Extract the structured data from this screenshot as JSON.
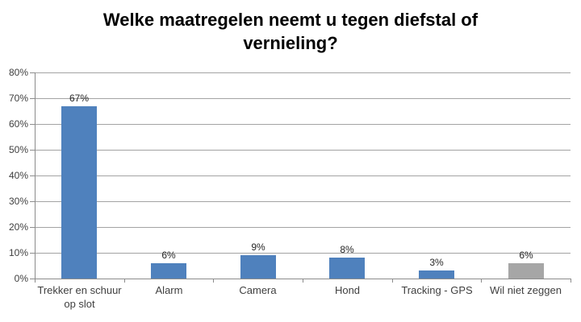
{
  "chart_data": {
    "type": "bar",
    "title": "Welke maatregelen neemt u tegen diefstal of vernieling?",
    "categories": [
      "Trekker en schuur op slot",
      "Alarm",
      "Camera",
      "Hond",
      "Tracking - GPS",
      "Wil niet zeggen"
    ],
    "values": [
      67,
      6,
      9,
      8,
      3,
      6
    ],
    "value_labels": [
      "67%",
      "6%",
      "9%",
      "8%",
      "3%",
      "6%"
    ],
    "bar_colors": [
      "#4F81BD",
      "#4F81BD",
      "#4F81BD",
      "#4F81BD",
      "#4F81BD",
      "#A6A6A6"
    ],
    "ylim": [
      0,
      80
    ],
    "ytick_step": 10,
    "ytick_labels": [
      "0%",
      "10%",
      "20%",
      "30%",
      "40%",
      "50%",
      "60%",
      "70%",
      "80%"
    ],
    "xlabel": "",
    "ylabel": "",
    "grid": true,
    "legend": "none",
    "colors": {
      "gridline": "#A3A3A3",
      "axis": "#8C8C8C",
      "background": "#FFFFFF",
      "title_text": "#000000",
      "axis_text": "#3F3F3F",
      "value_text": "#262626"
    }
  }
}
